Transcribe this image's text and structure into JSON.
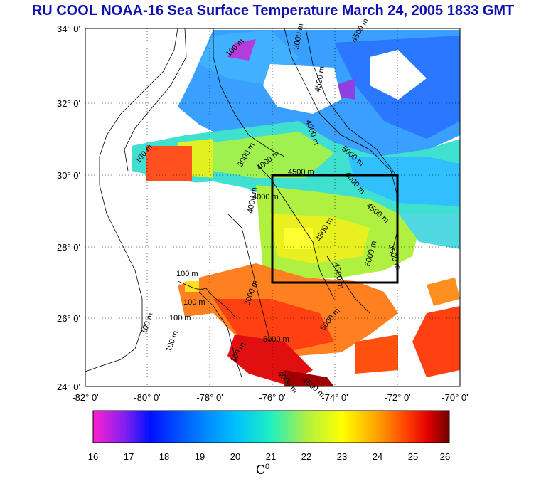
{
  "title": "RU COOL  NOAA-16 Sea Surface Temperature March 24, 2005 1833 GMT",
  "map": {
    "lat_labels": [
      "34° 0'",
      "32° 0'",
      "30° 0'",
      "28° 0'",
      "26° 0'",
      "24° 0'"
    ],
    "lon_labels": [
      "-82° 0'",
      "-80° 0'",
      "-78° 0'",
      "-76° 0'",
      "-74° 0'",
      "-72° 0'",
      "-70° 0'"
    ],
    "bounds": {
      "lon_min": -82,
      "lon_max": -70,
      "lat_min": 24,
      "lat_max": 34
    },
    "study_box": {
      "lon_min": -76,
      "lon_max": -72,
      "lat_min": 27,
      "lat_max": 30
    },
    "contour_labels": [
      "100 m",
      "3000 m",
      "4500 m",
      "4000 m",
      "5000 m",
      "4500 m",
      "100 m",
      "3000 m",
      "4000 m",
      "4500 m",
      "4000 m",
      "4000 m",
      "4500 m",
      "4500 m",
      "5000 m",
      "4500 m",
      "4500 m",
      "5000 m",
      "100 m",
      "100 m",
      "100 m",
      "100 m",
      "5000 m",
      "100 m",
      "3000 m",
      "4000 m",
      "4500 m",
      "100 m",
      "4000 m"
    ]
  },
  "colorbar": {
    "ticks": [
      "16",
      "17",
      "18",
      "19",
      "20",
      "21",
      "22",
      "23",
      "24",
      "25",
      "26"
    ],
    "unit": "C",
    "unit_sup": "0",
    "stops": [
      "#ff20d0",
      "#8020f0",
      "#0010ff",
      "#0070ff",
      "#00c0ff",
      "#20f0c0",
      "#b0f040",
      "#ffff00",
      "#ffa000",
      "#ff4000",
      "#e00000",
      "#700000"
    ]
  }
}
